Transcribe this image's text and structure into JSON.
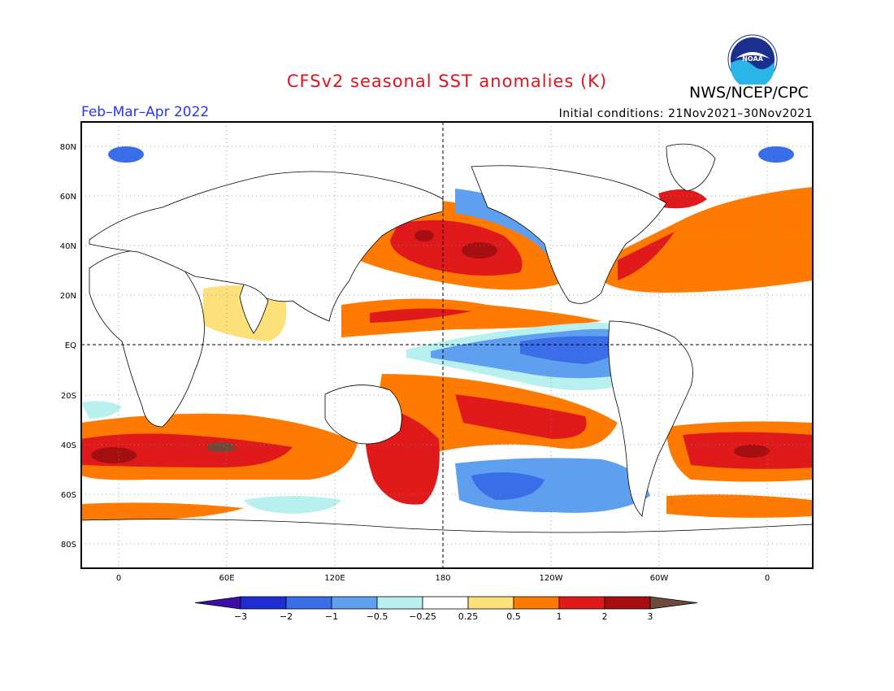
{
  "header": {
    "title": "CFSv2 seasonal SST anomalies (K)",
    "agency": "NWS/NCEP/CPC",
    "period": "Feb–Mar–Apr 2022",
    "initial_conditions": "Initial conditions: 21Nov2021–30Nov2021",
    "logo_text": "NOAA"
  },
  "map": {
    "lat_labels": [
      "80N",
      "60N",
      "40N",
      "20N",
      "EQ",
      "20S",
      "40S",
      "60S",
      "80S"
    ],
    "lon_labels": [
      "0",
      "60E",
      "120E",
      "180",
      "120W",
      "60W",
      "0"
    ]
  },
  "colorbar": {
    "labels": [
      "−3",
      "−2",
      "−1",
      "−0.5",
      "−0.25",
      "0.25",
      "0.5",
      "1",
      "2",
      "3"
    ],
    "colors": [
      "#1e2dd4",
      "#3a6ee8",
      "#5e9ff0",
      "#b8f0f0",
      "#ffffff",
      "#fce07a",
      "#ff7a00",
      "#e01a1a",
      "#a50f0f"
    ],
    "low_extend_color": "#3a0fa8",
    "high_extend_color": "#6e4a3c"
  }
}
